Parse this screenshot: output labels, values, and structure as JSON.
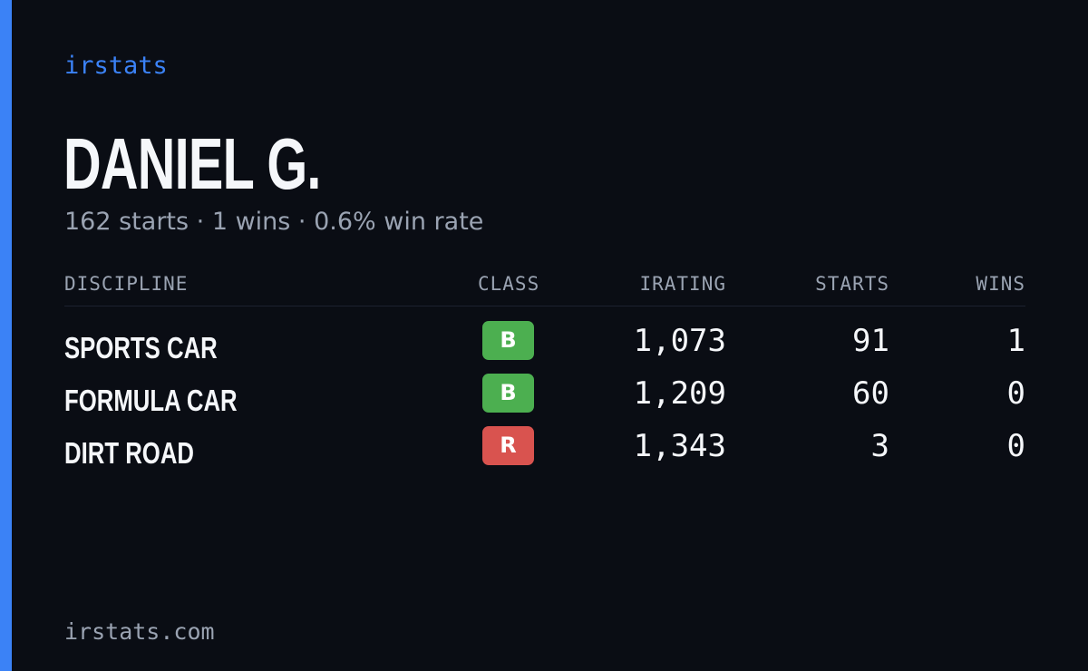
{
  "brand": "irstats",
  "driver": {
    "name": "DANIEL G.",
    "summary": "162 starts · 1 wins · 0.6% win rate"
  },
  "colors": {
    "accent": "#3b82f6",
    "class_b": "#4caf50",
    "class_r": "#d9534f"
  },
  "table": {
    "headers": {
      "discipline": "DISCIPLINE",
      "class": "CLASS",
      "irating": "IRATING",
      "starts": "STARTS",
      "wins": "WINS"
    },
    "rows": [
      {
        "discipline": "SPORTS CAR",
        "class": "B",
        "class_color": "#4caf50",
        "irating": "1,073",
        "starts": "91",
        "wins": "1"
      },
      {
        "discipline": "FORMULA CAR",
        "class": "B",
        "class_color": "#4caf50",
        "irating": "1,209",
        "starts": "60",
        "wins": "0"
      },
      {
        "discipline": "DIRT ROAD",
        "class": "R",
        "class_color": "#d9534f",
        "irating": "1,343",
        "starts": "3",
        "wins": "0"
      }
    ]
  },
  "footer": "irstats.com"
}
